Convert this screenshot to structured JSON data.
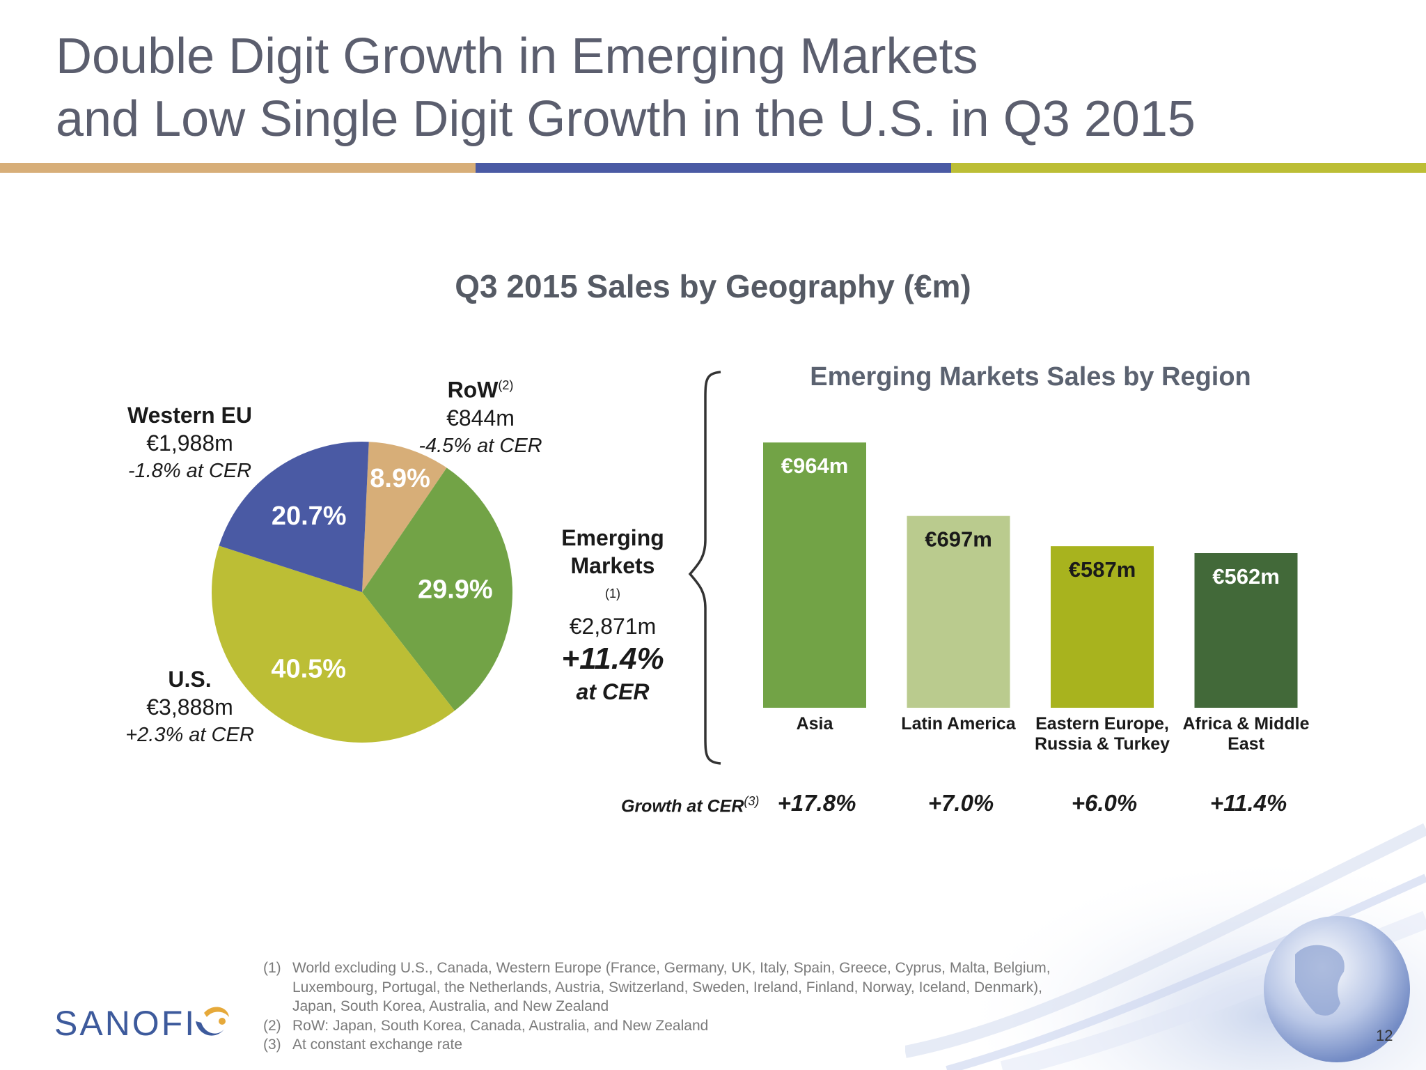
{
  "title_line1": "Double Digit Growth in Emerging Markets",
  "title_line2": "and Low Single Digit Growth in the U.S. in Q3 2015",
  "colors": {
    "tan": "#d7ae78",
    "blue": "#4a5aa4",
    "olive": "#bcbe35",
    "green": "#72a346",
    "light_green": "#bacb8e",
    "yellow_green": "#a8b31e",
    "dark_green": "#426939"
  },
  "chart_data": [
    {
      "type": "pie",
      "title": "Q3 2015 Sales by Geography (€m)",
      "slices": [
        {
          "name": "RoW",
          "sup": "(2)",
          "value": 844,
          "value_label": "€844m",
          "pct": 8.9,
          "pct_label": "8.9%",
          "cer": "-4.5% at CER",
          "color": "#d7ae78"
        },
        {
          "name": "Emerging Markets",
          "sup": "(1)",
          "value": 2871,
          "value_label": "€2,871m",
          "pct": 29.9,
          "pct_label": "29.9%",
          "cer": "+11.4%",
          "cer_suffix": "at CER",
          "color": "#72a346"
        },
        {
          "name": "U.S.",
          "value": 3888,
          "value_label": "€3,888m",
          "pct": 40.5,
          "pct_label": "40.5%",
          "cer": "+2.3% at CER",
          "color": "#bcbe35"
        },
        {
          "name": "Western EU",
          "value": 1988,
          "value_label": "€1,988m",
          "pct": 20.7,
          "pct_label": "20.7%",
          "cer": "-1.8% at CER",
          "color": "#4a5aa4"
        }
      ]
    },
    {
      "type": "bar",
      "title": "Emerging Markets Sales by Region",
      "categories": [
        "Asia",
        "Latin America",
        "Eastern Europe, Russia & Turkey",
        "Africa & Middle East"
      ],
      "category_lines": [
        [
          "Asia"
        ],
        [
          "Latin America"
        ],
        [
          "Eastern Europe,",
          "Russia & Turkey"
        ],
        [
          "Africa & Middle",
          "East"
        ]
      ],
      "values": [
        964,
        697,
        587,
        562
      ],
      "value_labels": [
        "€964m",
        "€697m",
        "€587m",
        "€562m"
      ],
      "colors": [
        "#72a346",
        "#bacb8e",
        "#a8b31e",
        "#426939"
      ],
      "growth_label": "Growth at CER",
      "growth_sup": "(3)",
      "growth": [
        "+17.8%",
        "+7.0%",
        "+6.0%",
        "+11.4%"
      ],
      "ylim": [
        0,
        1000
      ]
    }
  ],
  "footnotes": [
    {
      "num": "(1)",
      "text": "World excluding U.S., Canada, Western Europe (France, Germany, UK, Italy, Spain, Greece, Cyprus, Malta, Belgium, Luxembourg, Portugal, the Netherlands, Austria, Switzerland, Sweden, Ireland, Finland, Norway, Iceland, Denmark), Japan, South Korea, Australia, and New Zealand"
    },
    {
      "num": "(2)",
      "text": "RoW: Japan, South Korea, Canada, Australia, and New Zealand"
    },
    {
      "num": "(3)",
      "text": "At constant exchange rate"
    }
  ],
  "logo": "SANOFI",
  "page_number": "12"
}
